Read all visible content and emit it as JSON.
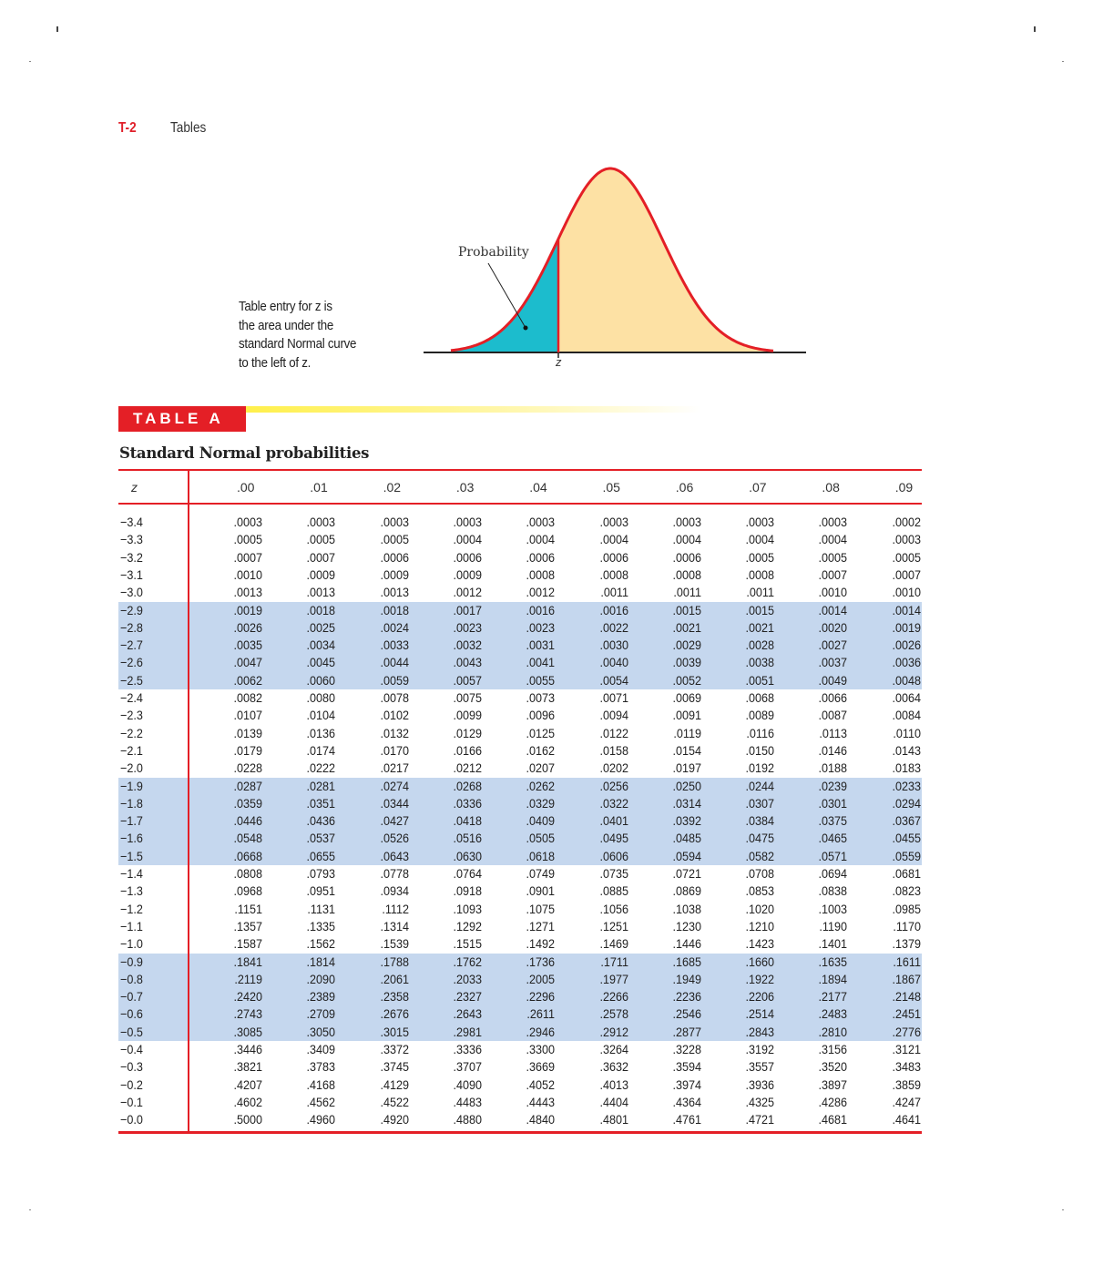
{
  "header": {
    "page_number": "T-2",
    "section": "Tables"
  },
  "figure": {
    "caption_lines": [
      "Table entry for z is",
      "the area under the",
      "standard Normal curve",
      "to the left of z."
    ],
    "probability_label": "Probability",
    "z_label": "z",
    "colors": {
      "curve": "#e41f26",
      "left_area": "#1cbccd",
      "right_area": "#fde1a4"
    }
  },
  "table": {
    "badge": "TABLE A",
    "title": "Standard Normal probabilities",
    "columns": [
      "z",
      ".00",
      ".01",
      ".02",
      ".03",
      ".04",
      ".05",
      ".06",
      ".07",
      ".08",
      ".09"
    ],
    "rows": [
      [
        "−3.4",
        ".0003",
        ".0003",
        ".0003",
        ".0003",
        ".0003",
        ".0003",
        ".0003",
        ".0003",
        ".0003",
        ".0002"
      ],
      [
        "−3.3",
        ".0005",
        ".0005",
        ".0005",
        ".0004",
        ".0004",
        ".0004",
        ".0004",
        ".0004",
        ".0004",
        ".0003"
      ],
      [
        "−3.2",
        ".0007",
        ".0007",
        ".0006",
        ".0006",
        ".0006",
        ".0006",
        ".0006",
        ".0005",
        ".0005",
        ".0005"
      ],
      [
        "−3.1",
        ".0010",
        ".0009",
        ".0009",
        ".0009",
        ".0008",
        ".0008",
        ".0008",
        ".0008",
        ".0007",
        ".0007"
      ],
      [
        "−3.0",
        ".0013",
        ".0013",
        ".0013",
        ".0012",
        ".0012",
        ".0011",
        ".0011",
        ".0011",
        ".0010",
        ".0010"
      ],
      [
        "−2.9",
        ".0019",
        ".0018",
        ".0018",
        ".0017",
        ".0016",
        ".0016",
        ".0015",
        ".0015",
        ".0014",
        ".0014"
      ],
      [
        "−2.8",
        ".0026",
        ".0025",
        ".0024",
        ".0023",
        ".0023",
        ".0022",
        ".0021",
        ".0021",
        ".0020",
        ".0019"
      ],
      [
        "−2.7",
        ".0035",
        ".0034",
        ".0033",
        ".0032",
        ".0031",
        ".0030",
        ".0029",
        ".0028",
        ".0027",
        ".0026"
      ],
      [
        "−2.6",
        ".0047",
        ".0045",
        ".0044",
        ".0043",
        ".0041",
        ".0040",
        ".0039",
        ".0038",
        ".0037",
        ".0036"
      ],
      [
        "−2.5",
        ".0062",
        ".0060",
        ".0059",
        ".0057",
        ".0055",
        ".0054",
        ".0052",
        ".0051",
        ".0049",
        ".0048"
      ],
      [
        "−2.4",
        ".0082",
        ".0080",
        ".0078",
        ".0075",
        ".0073",
        ".0071",
        ".0069",
        ".0068",
        ".0066",
        ".0064"
      ],
      [
        "−2.3",
        ".0107",
        ".0104",
        ".0102",
        ".0099",
        ".0096",
        ".0094",
        ".0091",
        ".0089",
        ".0087",
        ".0084"
      ],
      [
        "−2.2",
        ".0139",
        ".0136",
        ".0132",
        ".0129",
        ".0125",
        ".0122",
        ".0119",
        ".0116",
        ".0113",
        ".0110"
      ],
      [
        "−2.1",
        ".0179",
        ".0174",
        ".0170",
        ".0166",
        ".0162",
        ".0158",
        ".0154",
        ".0150",
        ".0146",
        ".0143"
      ],
      [
        "−2.0",
        ".0228",
        ".0222",
        ".0217",
        ".0212",
        ".0207",
        ".0202",
        ".0197",
        ".0192",
        ".0188",
        ".0183"
      ],
      [
        "−1.9",
        ".0287",
        ".0281",
        ".0274",
        ".0268",
        ".0262",
        ".0256",
        ".0250",
        ".0244",
        ".0239",
        ".0233"
      ],
      [
        "−1.8",
        ".0359",
        ".0351",
        ".0344",
        ".0336",
        ".0329",
        ".0322",
        ".0314",
        ".0307",
        ".0301",
        ".0294"
      ],
      [
        "−1.7",
        ".0446",
        ".0436",
        ".0427",
        ".0418",
        ".0409",
        ".0401",
        ".0392",
        ".0384",
        ".0375",
        ".0367"
      ],
      [
        "−1.6",
        ".0548",
        ".0537",
        ".0526",
        ".0516",
        ".0505",
        ".0495",
        ".0485",
        ".0475",
        ".0465",
        ".0455"
      ],
      [
        "−1.5",
        ".0668",
        ".0655",
        ".0643",
        ".0630",
        ".0618",
        ".0606",
        ".0594",
        ".0582",
        ".0571",
        ".0559"
      ],
      [
        "−1.4",
        ".0808",
        ".0793",
        ".0778",
        ".0764",
        ".0749",
        ".0735",
        ".0721",
        ".0708",
        ".0694",
        ".0681"
      ],
      [
        "−1.3",
        ".0968",
        ".0951",
        ".0934",
        ".0918",
        ".0901",
        ".0885",
        ".0869",
        ".0853",
        ".0838",
        ".0823"
      ],
      [
        "−1.2",
        ".1151",
        ".1131",
        ".1112",
        ".1093",
        ".1075",
        ".1056",
        ".1038",
        ".1020",
        ".1003",
        ".0985"
      ],
      [
        "−1.1",
        ".1357",
        ".1335",
        ".1314",
        ".1292",
        ".1271",
        ".1251",
        ".1230",
        ".1210",
        ".1190",
        ".1170"
      ],
      [
        "−1.0",
        ".1587",
        ".1562",
        ".1539",
        ".1515",
        ".1492",
        ".1469",
        ".1446",
        ".1423",
        ".1401",
        ".1379"
      ],
      [
        "−0.9",
        ".1841",
        ".1814",
        ".1788",
        ".1762",
        ".1736",
        ".1711",
        ".1685",
        ".1660",
        ".1635",
        ".1611"
      ],
      [
        "−0.8",
        ".2119",
        ".2090",
        ".2061",
        ".2033",
        ".2005",
        ".1977",
        ".1949",
        ".1922",
        ".1894",
        ".1867"
      ],
      [
        "−0.7",
        ".2420",
        ".2389",
        ".2358",
        ".2327",
        ".2296",
        ".2266",
        ".2236",
        ".2206",
        ".2177",
        ".2148"
      ],
      [
        "−0.6",
        ".2743",
        ".2709",
        ".2676",
        ".2643",
        ".2611",
        ".2578",
        ".2546",
        ".2514",
        ".2483",
        ".2451"
      ],
      [
        "−0.5",
        ".3085",
        ".3050",
        ".3015",
        ".2981",
        ".2946",
        ".2912",
        ".2877",
        ".2843",
        ".2810",
        ".2776"
      ],
      [
        "−0.4",
        ".3446",
        ".3409",
        ".3372",
        ".3336",
        ".3300",
        ".3264",
        ".3228",
        ".3192",
        ".3156",
        ".3121"
      ],
      [
        "−0.3",
        ".3821",
        ".3783",
        ".3745",
        ".3707",
        ".3669",
        ".3632",
        ".3594",
        ".3557",
        ".3520",
        ".3483"
      ],
      [
        "−0.2",
        ".4207",
        ".4168",
        ".4129",
        ".4090",
        ".4052",
        ".4013",
        ".3974",
        ".3936",
        ".3897",
        ".3859"
      ],
      [
        "−0.1",
        ".4602",
        ".4562",
        ".4522",
        ".4483",
        ".4443",
        ".4404",
        ".4364",
        ".4325",
        ".4286",
        ".4247"
      ],
      [
        "−0.0",
        ".5000",
        ".4960",
        ".4920",
        ".4880",
        ".4840",
        ".4801",
        ".4761",
        ".4721",
        ".4681",
        ".4641"
      ]
    ],
    "shade_color": "#c5d7ee",
    "accent": "#e41f26"
  }
}
